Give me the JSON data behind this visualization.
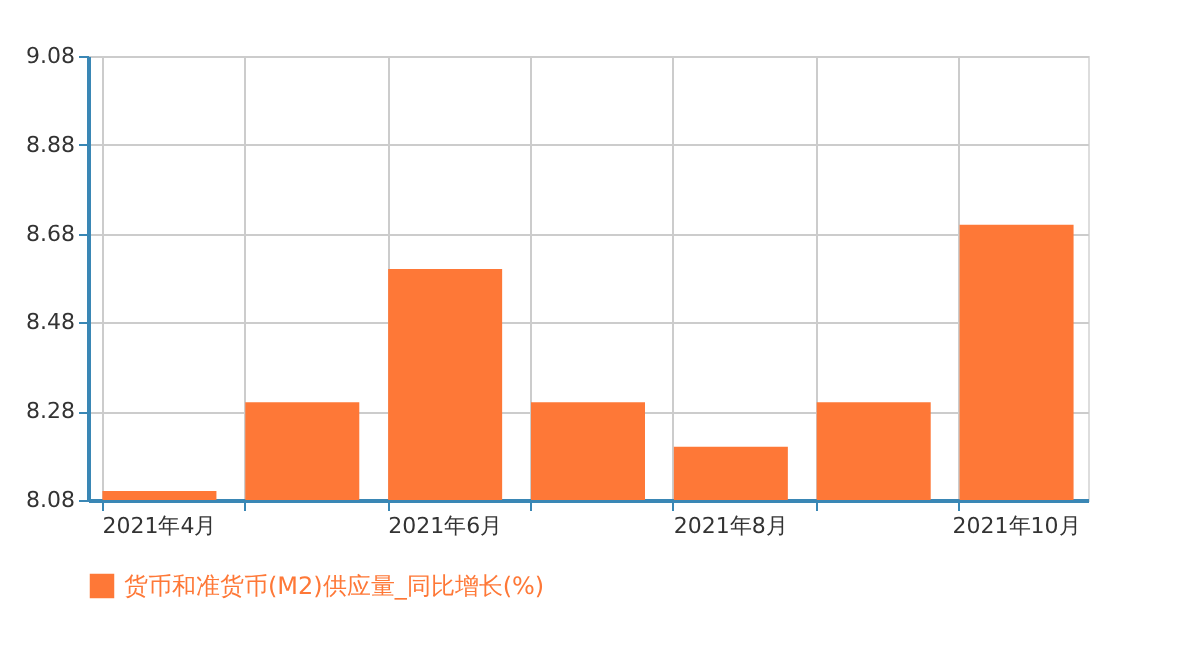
{
  "chart_data": {
    "type": "bar",
    "categories": [
      "2021年4月",
      null,
      "2021年6月",
      null,
      "2021年8月",
      null,
      "2021年10月"
    ],
    "series": [
      {
        "name": "货币和准货币(M2)供应量_同比增长(%)",
        "color": "#fe7837",
        "values": [
          8.1,
          8.3,
          8.6,
          8.3,
          8.2,
          8.3,
          8.7
        ]
      }
    ],
    "ylim": [
      8.08,
      9.08
    ],
    "yticks": [
      8.08,
      8.28,
      8.48,
      8.68,
      8.88,
      9.08
    ],
    "grid": true,
    "legend": "bottom"
  }
}
